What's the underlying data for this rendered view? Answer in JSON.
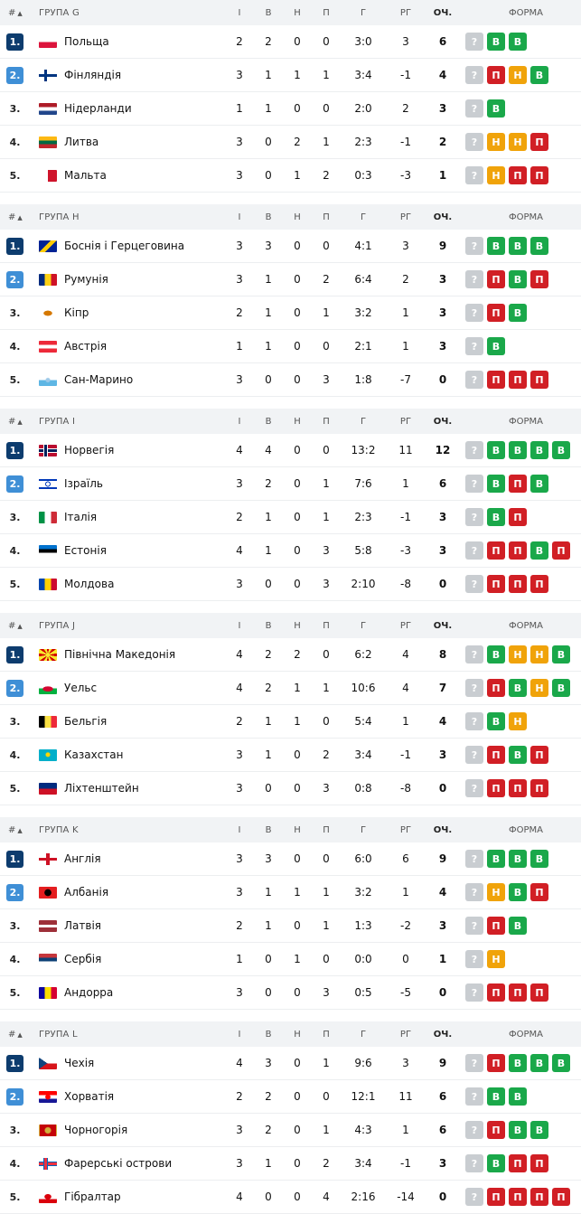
{
  "header": {
    "hash": "#",
    "cols": {
      "i": "І",
      "v": "В",
      "n": "Н",
      "p": "П",
      "g": "Г",
      "rg": "РГ",
      "och": "ОЧ.",
      "form": "ФОРМА"
    }
  },
  "badge_letters": {
    "q": "?",
    "W": "В",
    "D": "Н",
    "L": "П"
  },
  "groups": [
    {
      "title": "ГРУПА G",
      "rows": [
        {
          "pos": "1.",
          "team": "Польща",
          "flag": "poland-flag",
          "i": "2",
          "v": "2",
          "n": "0",
          "p": "0",
          "g": "3:0",
          "rg": "3",
          "och": "6",
          "form": [
            "q",
            "W",
            "W"
          ]
        },
        {
          "pos": "2.",
          "team": "Фінляндія",
          "flag": "finland-flag",
          "i": "3",
          "v": "1",
          "n": "1",
          "p": "1",
          "g": "3:4",
          "rg": "-1",
          "och": "4",
          "form": [
            "q",
            "L",
            "D",
            "W"
          ]
        },
        {
          "pos": "3.",
          "team": "Нідерланди",
          "flag": "netherlands-flag",
          "i": "1",
          "v": "1",
          "n": "0",
          "p": "0",
          "g": "2:0",
          "rg": "2",
          "och": "3",
          "form": [
            "q",
            "W"
          ]
        },
        {
          "pos": "4.",
          "team": "Литва",
          "flag": "lithuania-flag",
          "i": "3",
          "v": "0",
          "n": "2",
          "p": "1",
          "g": "2:3",
          "rg": "-1",
          "och": "2",
          "form": [
            "q",
            "D",
            "D",
            "L"
          ]
        },
        {
          "pos": "5.",
          "team": "Мальта",
          "flag": "malta-flag",
          "i": "3",
          "v": "0",
          "n": "1",
          "p": "2",
          "g": "0:3",
          "rg": "-3",
          "och": "1",
          "form": [
            "q",
            "D",
            "L",
            "L"
          ]
        }
      ]
    },
    {
      "title": "ГРУПА H",
      "rows": [
        {
          "pos": "1.",
          "team": "Боснія і Герцеговина",
          "flag": "bosnia-flag",
          "i": "3",
          "v": "3",
          "n": "0",
          "p": "0",
          "g": "4:1",
          "rg": "3",
          "och": "9",
          "form": [
            "q",
            "W",
            "W",
            "W"
          ]
        },
        {
          "pos": "2.",
          "team": "Румунія",
          "flag": "romania-flag",
          "i": "3",
          "v": "1",
          "n": "0",
          "p": "2",
          "g": "6:4",
          "rg": "2",
          "och": "3",
          "form": [
            "q",
            "L",
            "W",
            "L"
          ]
        },
        {
          "pos": "3.",
          "team": "Кіпр",
          "flag": "cyprus-flag",
          "i": "2",
          "v": "1",
          "n": "0",
          "p": "1",
          "g": "3:2",
          "rg": "1",
          "och": "3",
          "form": [
            "q",
            "L",
            "W"
          ]
        },
        {
          "pos": "4.",
          "team": "Австрія",
          "flag": "austria-flag",
          "i": "1",
          "v": "1",
          "n": "0",
          "p": "0",
          "g": "2:1",
          "rg": "1",
          "och": "3",
          "form": [
            "q",
            "W"
          ]
        },
        {
          "pos": "5.",
          "team": "Сан-Марино",
          "flag": "san-marino-flag",
          "i": "3",
          "v": "0",
          "n": "0",
          "p": "3",
          "g": "1:8",
          "rg": "-7",
          "och": "0",
          "form": [
            "q",
            "L",
            "L",
            "L"
          ]
        }
      ]
    },
    {
      "title": "ГРУПА I",
      "rows": [
        {
          "pos": "1.",
          "team": "Норвегія",
          "flag": "norway-flag",
          "i": "4",
          "v": "4",
          "n": "0",
          "p": "0",
          "g": "13:2",
          "rg": "11",
          "och": "12",
          "form": [
            "q",
            "W",
            "W",
            "W",
            "W"
          ]
        },
        {
          "pos": "2.",
          "team": "Ізраїль",
          "flag": "israel-flag",
          "i": "3",
          "v": "2",
          "n": "0",
          "p": "1",
          "g": "7:6",
          "rg": "1",
          "och": "6",
          "form": [
            "q",
            "W",
            "L",
            "W"
          ]
        },
        {
          "pos": "3.",
          "team": "Італія",
          "flag": "italy-flag",
          "i": "2",
          "v": "1",
          "n": "0",
          "p": "1",
          "g": "2:3",
          "rg": "-1",
          "och": "3",
          "form": [
            "q",
            "W",
            "L"
          ]
        },
        {
          "pos": "4.",
          "team": "Естонія",
          "flag": "estonia-flag",
          "i": "4",
          "v": "1",
          "n": "0",
          "p": "3",
          "g": "5:8",
          "rg": "-3",
          "och": "3",
          "form": [
            "q",
            "L",
            "L",
            "W",
            "L"
          ]
        },
        {
          "pos": "5.",
          "team": "Молдова",
          "flag": "moldova-flag",
          "i": "3",
          "v": "0",
          "n": "0",
          "p": "3",
          "g": "2:10",
          "rg": "-8",
          "och": "0",
          "form": [
            "q",
            "L",
            "L",
            "L"
          ]
        }
      ]
    },
    {
      "title": "ГРУПА J",
      "rows": [
        {
          "pos": "1.",
          "team": "Північна Македонія",
          "flag": "north-macedonia-flag",
          "i": "4",
          "v": "2",
          "n": "2",
          "p": "0",
          "g": "6:2",
          "rg": "4",
          "och": "8",
          "form": [
            "q",
            "W",
            "D",
            "D",
            "W"
          ]
        },
        {
          "pos": "2.",
          "team": "Уельс",
          "flag": "wales-flag",
          "i": "4",
          "v": "2",
          "n": "1",
          "p": "1",
          "g": "10:6",
          "rg": "4",
          "och": "7",
          "form": [
            "q",
            "L",
            "W",
            "D",
            "W"
          ]
        },
        {
          "pos": "3.",
          "team": "Бельгія",
          "flag": "belgium-flag",
          "i": "2",
          "v": "1",
          "n": "1",
          "p": "0",
          "g": "5:4",
          "rg": "1",
          "och": "4",
          "form": [
            "q",
            "W",
            "D"
          ]
        },
        {
          "pos": "4.",
          "team": "Казахстан",
          "flag": "kazakhstan-flag",
          "i": "3",
          "v": "1",
          "n": "0",
          "p": "2",
          "g": "3:4",
          "rg": "-1",
          "och": "3",
          "form": [
            "q",
            "L",
            "W",
            "L"
          ]
        },
        {
          "pos": "5.",
          "team": "Ліхтенштейн",
          "flag": "liechtenstein-flag",
          "i": "3",
          "v": "0",
          "n": "0",
          "p": "3",
          "g": "0:8",
          "rg": "-8",
          "och": "0",
          "form": [
            "q",
            "L",
            "L",
            "L"
          ]
        }
      ]
    },
    {
      "title": "ГРУПА K",
      "rows": [
        {
          "pos": "1.",
          "team": "Англія",
          "flag": "england-flag",
          "i": "3",
          "v": "3",
          "n": "0",
          "p": "0",
          "g": "6:0",
          "rg": "6",
          "och": "9",
          "form": [
            "q",
            "W",
            "W",
            "W"
          ]
        },
        {
          "pos": "2.",
          "team": "Албанія",
          "flag": "albania-flag",
          "i": "3",
          "v": "1",
          "n": "1",
          "p": "1",
          "g": "3:2",
          "rg": "1",
          "och": "4",
          "form": [
            "q",
            "D",
            "W",
            "L"
          ]
        },
        {
          "pos": "3.",
          "team": "Латвія",
          "flag": "latvia-flag",
          "i": "2",
          "v": "1",
          "n": "0",
          "p": "1",
          "g": "1:3",
          "rg": "-2",
          "och": "3",
          "form": [
            "q",
            "L",
            "W"
          ]
        },
        {
          "pos": "4.",
          "team": "Сербія",
          "flag": "serbia-flag",
          "i": "1",
          "v": "0",
          "n": "1",
          "p": "0",
          "g": "0:0",
          "rg": "0",
          "och": "1",
          "form": [
            "q",
            "D"
          ]
        },
        {
          "pos": "5.",
          "team": "Андорра",
          "flag": "andorra-flag",
          "i": "3",
          "v": "0",
          "n": "0",
          "p": "3",
          "g": "0:5",
          "rg": "-5",
          "och": "0",
          "form": [
            "q",
            "L",
            "L",
            "L"
          ]
        }
      ]
    },
    {
      "title": "ГРУПА L",
      "rows": [
        {
          "pos": "1.",
          "team": "Чехія",
          "flag": "czechia-flag",
          "i": "4",
          "v": "3",
          "n": "0",
          "p": "1",
          "g": "9:6",
          "rg": "3",
          "och": "9",
          "form": [
            "q",
            "L",
            "W",
            "W",
            "W"
          ]
        },
        {
          "pos": "2.",
          "team": "Хорватія",
          "flag": "croatia-flag",
          "i": "2",
          "v": "2",
          "n": "0",
          "p": "0",
          "g": "12:1",
          "rg": "11",
          "och": "6",
          "form": [
            "q",
            "W",
            "W"
          ]
        },
        {
          "pos": "3.",
          "team": "Чорногорія",
          "flag": "montenegro-flag",
          "i": "3",
          "v": "2",
          "n": "0",
          "p": "1",
          "g": "4:3",
          "rg": "1",
          "och": "6",
          "form": [
            "q",
            "L",
            "W",
            "W"
          ]
        },
        {
          "pos": "4.",
          "team": "Фарерські острови",
          "flag": "faroe-islands-flag",
          "i": "3",
          "v": "1",
          "n": "0",
          "p": "2",
          "g": "3:4",
          "rg": "-1",
          "och": "3",
          "form": [
            "q",
            "W",
            "L",
            "L"
          ]
        },
        {
          "pos": "5.",
          "team": "Гібралтар",
          "flag": "gibraltar-flag",
          "i": "4",
          "v": "0",
          "n": "0",
          "p": "4",
          "g": "2:16",
          "rg": "-14",
          "och": "0",
          "form": [
            "q",
            "L",
            "L",
            "L",
            "L"
          ]
        }
      ]
    }
  ]
}
